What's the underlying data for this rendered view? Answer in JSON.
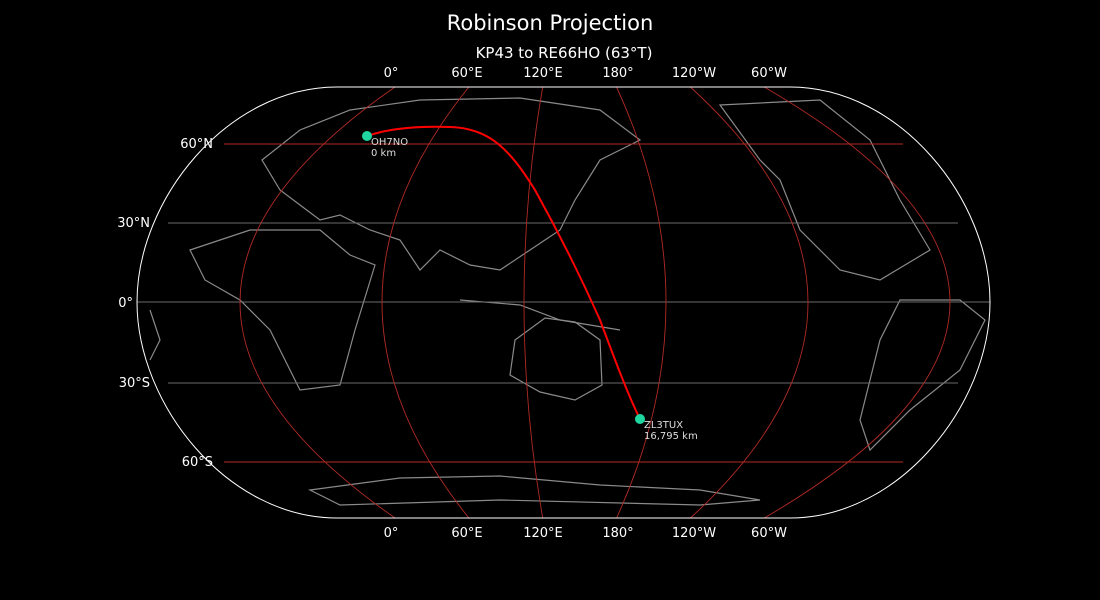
{
  "title": "Robinson Projection",
  "subtitle": "KP43 to RE66HO (63°T)",
  "longitude_labels": [
    "0°",
    "60°E",
    "120°E",
    "180°",
    "120°W",
    "60°W"
  ],
  "latitude_labels": [
    "60°N",
    "30°N",
    "0°",
    "30°S",
    "60°S"
  ],
  "stations": [
    {
      "call": "OH7NO",
      "distance": "0 km"
    },
    {
      "call": "ZL3TUX",
      "distance": "16,795 km"
    }
  ],
  "colors": {
    "path": "#ff0000",
    "marker": "#1fd6a0",
    "graticule_major": "#b02a25",
    "graticule_minor": "#6a6a6a",
    "coast": "#8a8a8a"
  }
}
